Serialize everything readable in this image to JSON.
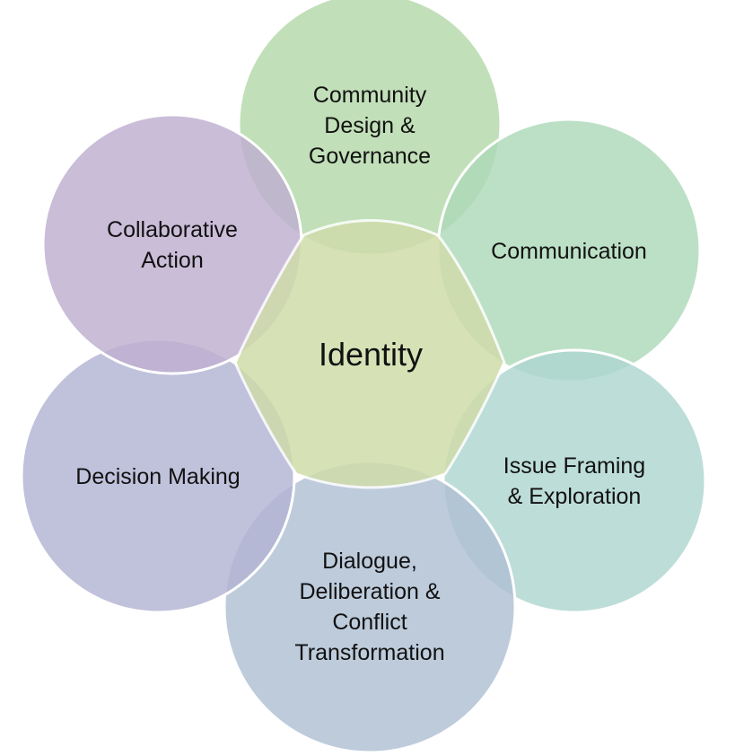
{
  "diagram": {
    "center": {
      "label": "Identity",
      "color": "#cfdcaa"
    },
    "petals": [
      {
        "id": "community",
        "lines": [
          "Community",
          "Design &",
          "Governance"
        ],
        "color": "#b3d8a8"
      },
      {
        "id": "communication",
        "lines": [
          "Communication"
        ],
        "color": "#add9b8"
      },
      {
        "id": "issue",
        "lines": [
          "Issue Framing",
          "& Exploration"
        ],
        "color": "#afd6cf"
      },
      {
        "id": "dialogue",
        "lines": [
          "Dialogue,",
          "Deliberation &",
          "Conflict",
          "Transformation"
        ],
        "color": "#aec0d3"
      },
      {
        "id": "decision",
        "lines": [
          "Decision Making"
        ],
        "color": "#b2b3d3"
      },
      {
        "id": "collaborative",
        "lines": [
          "Collaborative",
          "Action"
        ],
        "color": "#beafd0"
      }
    ]
  }
}
